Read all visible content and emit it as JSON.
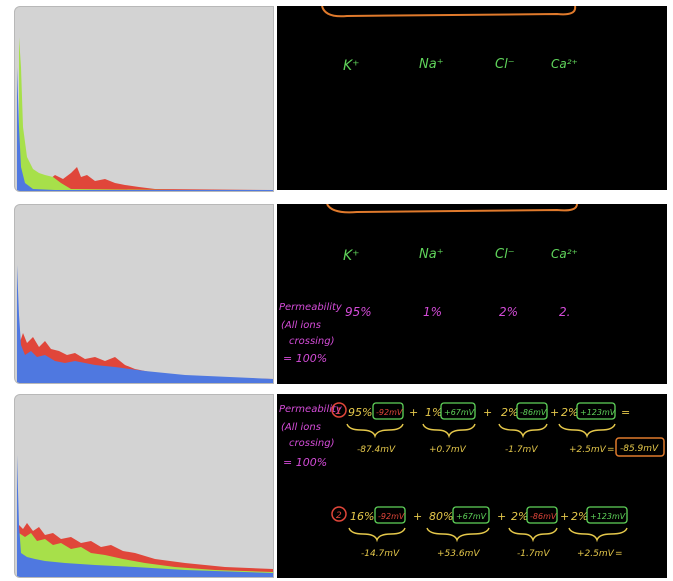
{
  "colors": {
    "green": "#5fd35a",
    "magenta": "#d44cd8",
    "yellow": "#e5c84b",
    "orange": "#e07a2c",
    "red": "#e0463a",
    "blue": "#4f78e0",
    "lime": "#a7e04a",
    "panel_bg": "#d3d3d3",
    "board_bg": "#000000"
  },
  "ions": [
    "K⁺",
    "Na⁺",
    "Cl⁻",
    "Ca²⁺"
  ],
  "panel2": {
    "permeability_label": "Permeability",
    "all_ions_line1": "(All ions",
    "all_ions_line2": "crossing)",
    "equals_100": "= 100%",
    "percents": [
      "95%",
      "1%",
      "2%",
      "2."
    ]
  },
  "panel3": {
    "permeability_label": "Permeability",
    "all_ions_line1": "(All ions",
    "all_ions_line2": "crossing)",
    "equals_100": "= 100%",
    "case1": {
      "number": "1",
      "terms": [
        {
          "pct": "95%",
          "mv": "-92mV",
          "result": "-87.4mV"
        },
        {
          "pct": "1%",
          "mv": "+67mV",
          "result": "+0.7mV"
        },
        {
          "pct": "2%",
          "mv": "-86mV",
          "result": "-1.7mV"
        },
        {
          "pct": "2%",
          "mv": "+123mV",
          "result": "+2.5mV"
        }
      ],
      "plus": "+",
      "equals": "=",
      "total": "-85.9mV"
    },
    "case2": {
      "number": "2",
      "terms": [
        {
          "pct": "16%",
          "mv": "-92mV",
          "result": "-14.7mV"
        },
        {
          "pct": "80%",
          "mv": "+67mV",
          "result": "+53.6mV"
        },
        {
          "pct": "2%",
          "mv": "-86mV",
          "result": "-1.7mV"
        },
        {
          "pct": "2%",
          "mv": "+123mV",
          "result": "+2.5mV"
        }
      ],
      "plus": "+",
      "equals": "="
    }
  }
}
